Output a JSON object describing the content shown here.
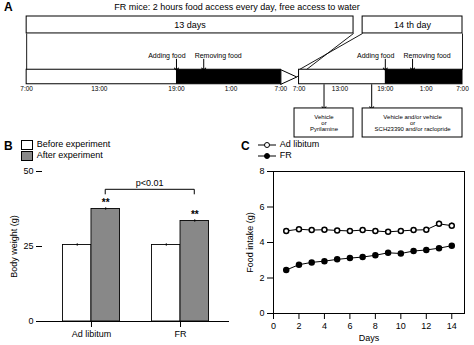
{
  "chart_data": [
    {
      "type": "diagram",
      "title": "FR mice: 2 hours food access every day, free access to water",
      "annotations": [
        "A",
        "13 days",
        "14 th day",
        "7:00",
        "13:00",
        "19:00",
        "1:00",
        "7:00",
        "Adding food",
        "Removing food",
        "Vehicle\nor\nPyrilamine",
        "Vehicle and/or vehicle\nor\nSCH23390 and/or raclopride"
      ]
    },
    {
      "type": "bar",
      "categories": [
        "Ad libitum",
        "FR"
      ],
      "series": [
        {
          "name": "Before experiment",
          "color": "#FFFFFF",
          "values": [
            25.5,
            25.5
          ],
          "errors": [
            0.4,
            0.4
          ]
        },
        {
          "name": "After experiment",
          "color": "#888888",
          "values": [
            37.5,
            33.5
          ],
          "errors": [
            0.4,
            0.4
          ]
        }
      ],
      "ylabel": "Body weight (g)",
      "ylim": [
        0,
        50
      ],
      "yticks": [
        0,
        25,
        50
      ],
      "legend": "upper left",
      "annotations": [
        {
          "text": "B"
        },
        {
          "text": "**",
          "category": "Ad libitum",
          "series": "After experiment"
        },
        {
          "text": "**",
          "category": "FR",
          "series": "After experiment"
        },
        {
          "text": "p<0.01",
          "categories": [
            "Ad libitum",
            "FR"
          ],
          "series": "After experiment"
        }
      ]
    },
    {
      "type": "line",
      "x": [
        1,
        2,
        3,
        4,
        5,
        6,
        7,
        8,
        9,
        10,
        11,
        12,
        13,
        14
      ],
      "series": [
        {
          "name": "Ad libitum",
          "color": "black",
          "marker": "open_circle",
          "values": [
            4.65,
            4.75,
            4.7,
            4.72,
            4.68,
            4.65,
            4.7,
            4.65,
            4.6,
            4.65,
            4.7,
            4.72,
            5.05,
            4.95
          ],
          "errors": [
            0.1,
            0.1,
            0.1,
            0.1,
            0.1,
            0.1,
            0.1,
            0.1,
            0.1,
            0.1,
            0.1,
            0.1,
            0.15,
            0.15
          ]
        },
        {
          "name": "FR",
          "color": "black",
          "marker": "circle",
          "values": [
            2.45,
            2.75,
            2.88,
            2.95,
            3.05,
            3.12,
            3.18,
            3.28,
            3.42,
            3.38,
            3.52,
            3.58,
            3.68,
            3.82
          ],
          "errors": [
            0.1,
            0.1,
            0.1,
            0.1,
            0.1,
            0.1,
            0.1,
            0.1,
            0.1,
            0.1,
            0.1,
            0.1,
            0.1,
            0.1
          ]
        }
      ],
      "xlabel": "Days",
      "ylabel": "Food intake (g)",
      "xlim": [
        0,
        15
      ],
      "ylim": [
        0,
        8
      ],
      "xticks": [
        0,
        2,
        4,
        6,
        8,
        10,
        12,
        14
      ],
      "yticks": [
        0,
        2,
        4,
        6,
        8
      ],
      "legend": "upper left",
      "annotations": [
        {
          "text": "C"
        }
      ]
    }
  ]
}
